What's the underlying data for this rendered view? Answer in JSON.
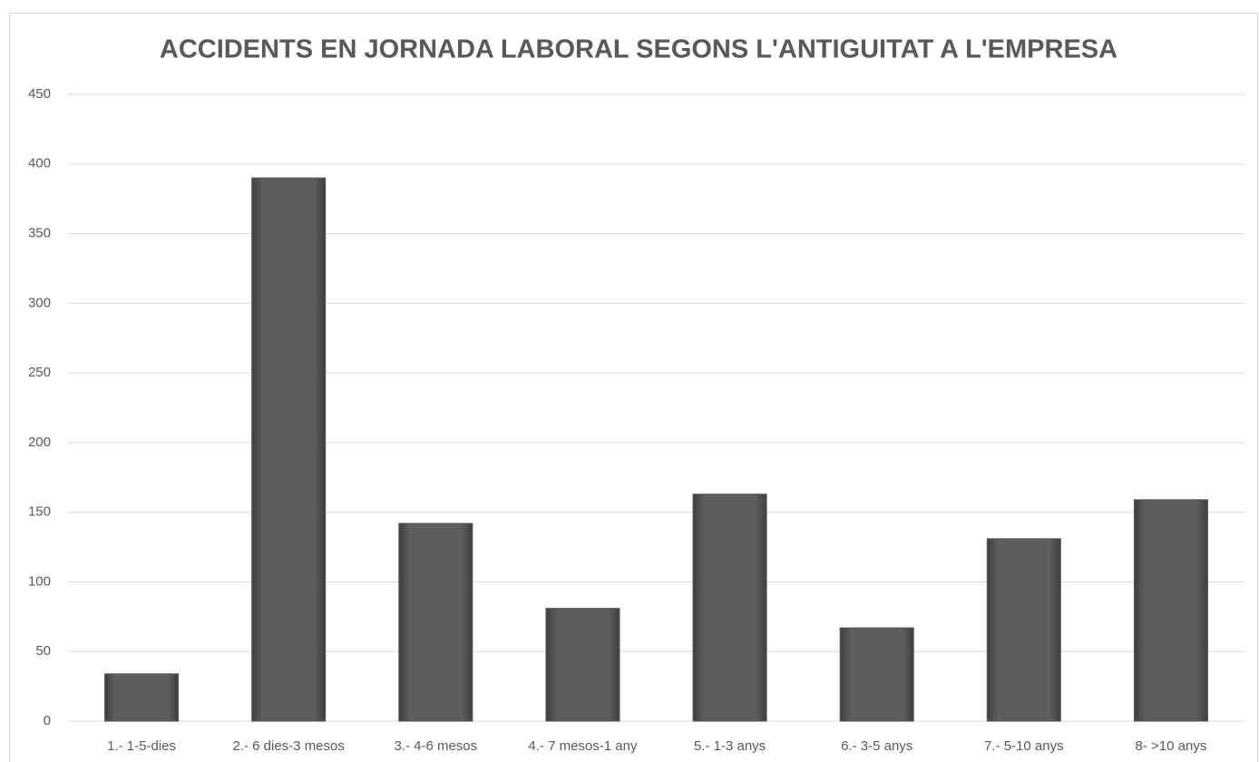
{
  "chart_data": {
    "type": "bar",
    "title": "ACCIDENTS EN JORNADA LABORAL SEGONS L'ANTIGUITAT A L'EMPRESA",
    "categories": [
      "1.- 1-5-dies",
      "2.- 6 dies-3 mesos",
      "3.- 4-6 mesos",
      "4.- 7 mesos-1 any",
      "5.- 1-3 anys",
      "6.- 3-5 anys",
      "7.- 5-10 anys",
      "8- >10 anys"
    ],
    "values": [
      34,
      390,
      142,
      81,
      163,
      67,
      131,
      159
    ],
    "color": "#5a5a5a",
    "ylim": [
      0,
      450
    ],
    "yticks": [
      0,
      50,
      100,
      150,
      200,
      250,
      300,
      350,
      400,
      450
    ],
    "grid": true
  }
}
